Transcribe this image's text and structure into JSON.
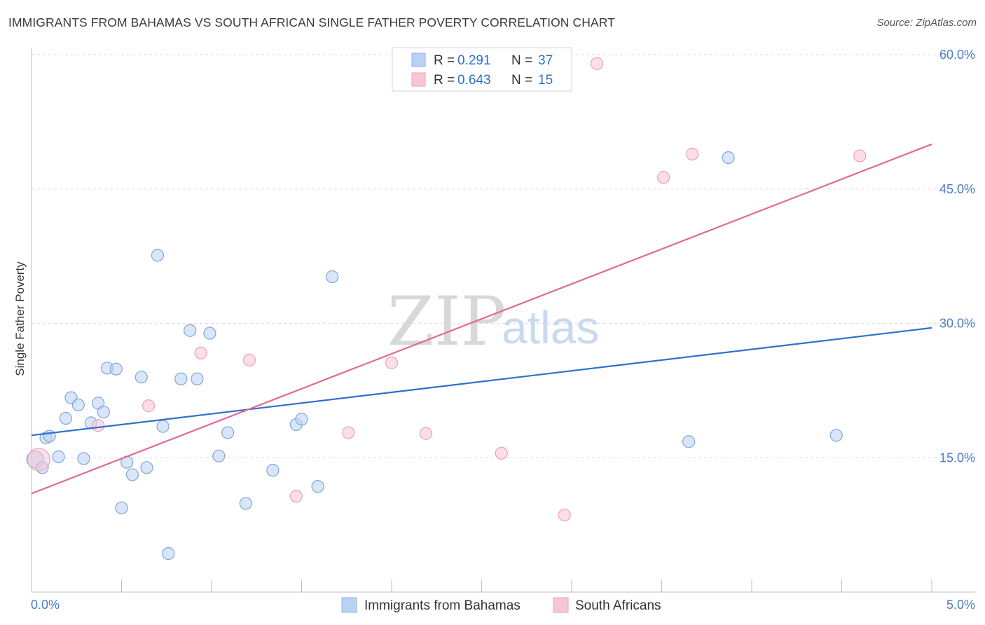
{
  "title": "IMMIGRANTS FROM BAHAMAS VS SOUTH AFRICAN SINGLE FATHER POVERTY CORRELATION CHART",
  "source": "Source: ZipAtlas.com",
  "watermark": {
    "zip": "ZIP",
    "atlas": "atlas"
  },
  "colors": {
    "blue": "#4a7cc9",
    "blue_fill": "#b9d1f2",
    "blue_line": "#2f6fcc",
    "pink_fill": "#f7c5d4",
    "pink_line": "#e06a94",
    "grid": "#dcdcdc"
  },
  "legend": {
    "rows": [
      {
        "r_label": "R = ",
        "r_value": "0.291",
        "n_label": "N = ",
        "n_value": "37"
      },
      {
        "r_label": "R = ",
        "r_value": "0.643",
        "n_label": "N = ",
        "n_value": "15"
      }
    ]
  },
  "chart_data": {
    "type": "scatter",
    "title": "IMMIGRANTS FROM BAHAMAS VS SOUTH AFRICAN SINGLE FATHER POVERTY CORRELATION CHART",
    "xlabel": "",
    "ylabel": "Single Father Poverty",
    "xlim": [
      0,
      5
    ],
    "ylim": [
      0,
      60
    ],
    "x_tick_labels": [
      "0.0%",
      "5.0%"
    ],
    "y_ticks": [
      15,
      30,
      45,
      60
    ],
    "y_tick_labels": [
      "15.0%",
      "30.0%",
      "45.0%",
      "60.0%"
    ],
    "series": [
      {
        "name": "Immigrants from Bahamas",
        "color": "#b9d1f2",
        "points": [
          [
            0.02,
            14.8
          ],
          [
            0.06,
            13.9
          ],
          [
            0.08,
            17.2
          ],
          [
            0.1,
            17.4
          ],
          [
            0.15,
            15.1
          ],
          [
            0.19,
            19.4
          ],
          [
            0.22,
            21.7
          ],
          [
            0.26,
            20.9
          ],
          [
            0.29,
            14.9
          ],
          [
            0.33,
            18.9
          ],
          [
            0.37,
            21.1
          ],
          [
            0.4,
            20.1
          ],
          [
            0.42,
            25.0
          ],
          [
            0.47,
            24.9
          ],
          [
            0.5,
            9.4
          ],
          [
            0.53,
            14.5
          ],
          [
            0.56,
            13.1
          ],
          [
            0.61,
            24.0
          ],
          [
            0.64,
            13.9
          ],
          [
            0.7,
            37.6
          ],
          [
            0.73,
            18.5
          ],
          [
            0.76,
            4.3
          ],
          [
            0.83,
            23.8
          ],
          [
            0.88,
            29.2
          ],
          [
            0.92,
            23.8
          ],
          [
            0.99,
            28.9
          ],
          [
            1.04,
            15.2
          ],
          [
            1.09,
            17.8
          ],
          [
            1.19,
            9.9
          ],
          [
            1.34,
            13.6
          ],
          [
            1.47,
            18.7
          ],
          [
            1.5,
            19.3
          ],
          [
            1.59,
            11.8
          ],
          [
            1.67,
            35.2
          ],
          [
            3.65,
            16.8
          ],
          [
            3.87,
            48.5
          ],
          [
            4.47,
            17.5
          ]
        ]
      },
      {
        "name": "South Africans",
        "color": "#f7c5d4",
        "points": [
          [
            0.04,
            14.8
          ],
          [
            0.37,
            18.6
          ],
          [
            0.65,
            20.8
          ],
          [
            0.94,
            26.7
          ],
          [
            1.21,
            25.9
          ],
          [
            1.47,
            10.7
          ],
          [
            1.76,
            17.8
          ],
          [
            2.0,
            25.6
          ],
          [
            2.19,
            17.7
          ],
          [
            2.61,
            15.5
          ],
          [
            2.96,
            8.6
          ],
          [
            3.14,
            59.0
          ],
          [
            3.51,
            46.3
          ],
          [
            3.67,
            48.9
          ],
          [
            4.6,
            48.7
          ]
        ]
      }
    ],
    "trendlines": [
      {
        "series": "Immigrants from Bahamas",
        "x": [
          0,
          5
        ],
        "y": [
          17.5,
          29.5
        ]
      },
      {
        "series": "South Africans",
        "x": [
          0,
          5
        ],
        "y": [
          11.0,
          50.0
        ]
      }
    ],
    "legend_position": "top-center",
    "grid": true
  }
}
